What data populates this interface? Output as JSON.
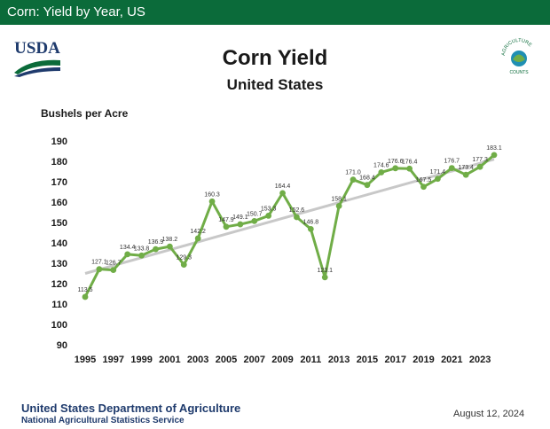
{
  "header": {
    "bar_title": "Corn: Yield by Year, US"
  },
  "logos": {
    "left_text": "USDA",
    "right_arc_text": "AGRICULTURE",
    "right_bottom_text": "COUNTS"
  },
  "footer": {
    "org": "United States Department of Agriculture",
    "agency": "National Agricultural Statistics Service",
    "date": "August 12, 2024"
  },
  "colors": {
    "bar": "#0b6b3a",
    "line": "#70ad47",
    "trend": "#c8c8c8"
  },
  "chart_data": {
    "type": "line",
    "title": "Corn Yield",
    "subtitle": "United States",
    "ylabel": "Bushels per Acre",
    "xlabel": "",
    "ylim": [
      90,
      190
    ],
    "yticks": [
      90,
      100,
      110,
      120,
      130,
      140,
      150,
      160,
      170,
      180,
      190
    ],
    "xticks": [
      1995,
      1997,
      1999,
      2001,
      2003,
      2005,
      2007,
      2009,
      2011,
      2013,
      2015,
      2017,
      2019,
      2021,
      2023
    ],
    "grid": false,
    "legend": "none",
    "trend_line": {
      "start": [
        1995,
        125
      ],
      "end": [
        2024,
        181
      ]
    },
    "x": [
      1995,
      1996,
      1997,
      1998,
      1999,
      2000,
      2001,
      2002,
      2003,
      2004,
      2005,
      2006,
      2007,
      2008,
      2009,
      2010,
      2011,
      2012,
      2013,
      2014,
      2015,
      2016,
      2017,
      2018,
      2019,
      2020,
      2021,
      2022,
      2023,
      2024
    ],
    "values": [
      113.5,
      127.1,
      126.7,
      134.4,
      133.8,
      136.9,
      138.2,
      129.3,
      142.2,
      160.3,
      147.9,
      149.1,
      150.7,
      153.3,
      164.4,
      152.6,
      146.8,
      123.1,
      158.1,
      171.0,
      168.4,
      174.6,
      176.6,
      176.4,
      167.5,
      171.4,
      176.7,
      173.4,
      177.3,
      183.1
    ],
    "labels": [
      "113.5",
      "127.1",
      "126.7",
      "134.4",
      "133.8",
      "136.9",
      "138.2",
      "129.3",
      "142.2",
      "160.3",
      "147.9",
      "149.1",
      "150.7",
      "153.3",
      "164.4",
      "152.6",
      "146.8",
      "123.1",
      "158.1",
      "171.0",
      "168.4",
      "174.6",
      "176.6",
      "176.4",
      "167.5",
      "171.4",
      "176.7",
      "173.4",
      "177.3",
      "183.1"
    ]
  }
}
